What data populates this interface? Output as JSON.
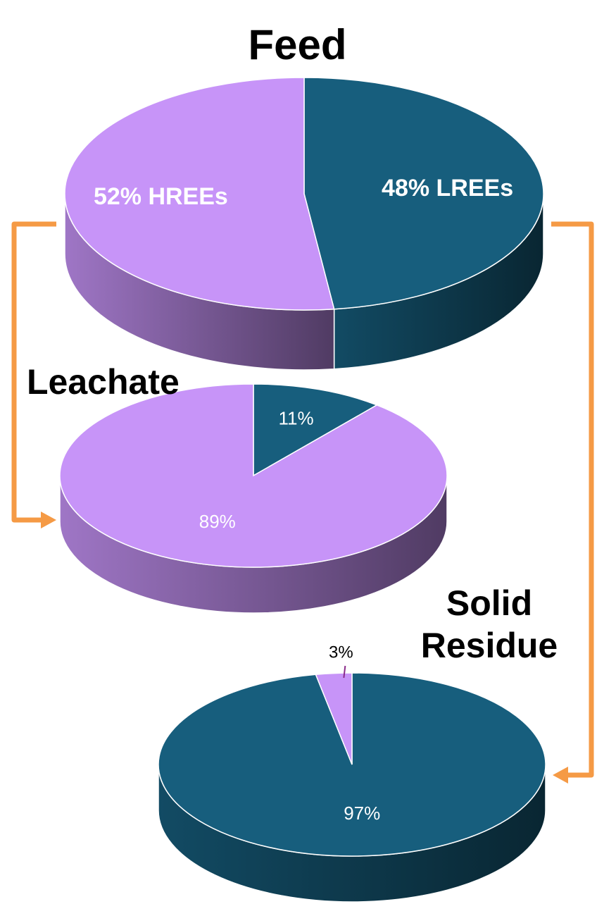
{
  "chart_data": [
    {
      "type": "pie",
      "title": "Feed",
      "values": [
        48,
        52
      ],
      "value_labels": [
        "48% LREEs",
        "52% HREEs"
      ],
      "colors": [
        "#175e7d",
        "#c794f8"
      ]
    },
    {
      "type": "pie",
      "title": "Leachate",
      "values": [
        11,
        89
      ],
      "value_labels": [
        "11%",
        "89%"
      ],
      "colors": [
        "#175e7d",
        "#c794f8"
      ]
    },
    {
      "type": "pie",
      "title": "Solid Residue",
      "values": [
        97,
        3
      ],
      "value_labels": [
        "97%",
        "3%"
      ],
      "colors": [
        "#175e7d",
        "#c794f8"
      ]
    }
  ]
}
